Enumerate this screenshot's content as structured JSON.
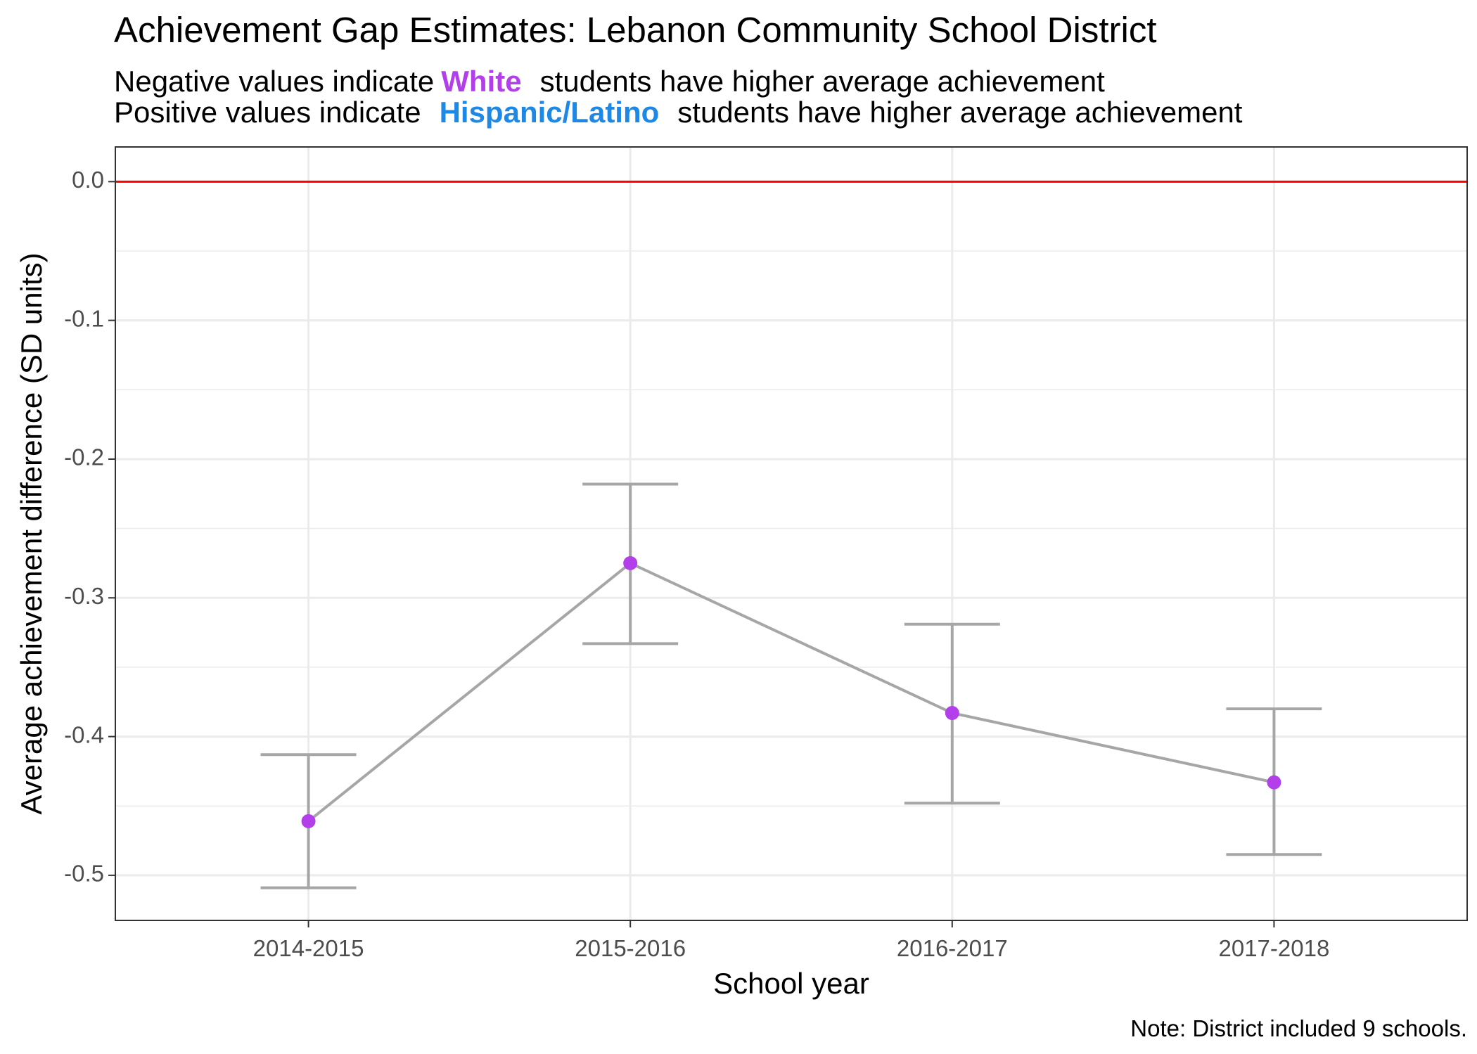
{
  "chart_data": {
    "type": "line",
    "title": "Achievement Gap Estimates: Lebanon Community School District",
    "subtitle": {
      "line1": {
        "before": "Negative values indicate",
        "highlight": "White",
        "after": "students have higher average achievement"
      },
      "line2": {
        "before": "Positive values indicate",
        "highlight": "Hispanic/Latino",
        "after": "students have higher average achievement"
      }
    },
    "xlabel": "School year",
    "ylabel": "Average achievement difference (SD units)",
    "caption": "Note: District included 9 schools.",
    "categories": [
      "2014-2015",
      "2015-2016",
      "2016-2017",
      "2017-2018"
    ],
    "series": [
      {
        "values": [
          -0.461,
          -0.275,
          -0.383,
          -0.433
        ],
        "lower": [
          -0.509,
          -0.333,
          -0.448,
          -0.485
        ],
        "upper": [
          -0.413,
          -0.218,
          -0.319,
          -0.38
        ]
      }
    ],
    "reference_line": 0.0,
    "ylim": [
      -0.5325,
      0.025
    ],
    "yticks": [
      "0.0",
      "-0.1",
      "-0.2",
      "-0.3",
      "-0.4",
      "-0.5"
    ],
    "ytick_values": [
      0.0,
      -0.1,
      -0.2,
      -0.3,
      -0.4,
      -0.5
    ],
    "grid": true,
    "colors": {
      "white_group": "#B33FEB",
      "hispanic_group": "#1E88E5",
      "point": "#B33FEB",
      "line": "#A6A6A6",
      "reference": "#FF0000",
      "grid": "#EBEBEB"
    }
  }
}
